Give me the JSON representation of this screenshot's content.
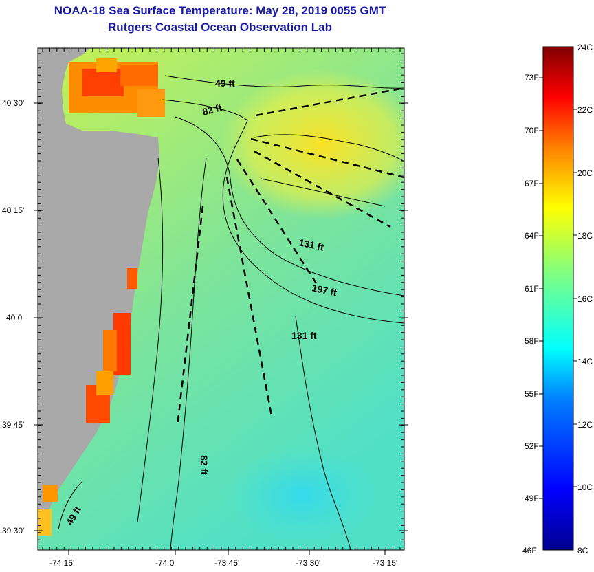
{
  "header": {
    "title": "NOAA-18 Sea Surface Temperature:  May 28, 2019 0055 GMT",
    "subtitle": "Rutgers Coastal Ocean Observation Lab"
  },
  "map": {
    "lat_labels": [
      "40 30'",
      "40 15'",
      "40 0'",
      "39 45'",
      "39 30'"
    ],
    "lon_labels": [
      "-74 15'",
      "-74 0'",
      "-73 45'",
      "-73 30'",
      "-73 15'"
    ],
    "lat_range": [
      39.45,
      40.66
    ],
    "lon_range": [
      -74.375,
      -73.22
    ],
    "isobath_labels": [
      "49 ft",
      "82 ft",
      "131 ft",
      "197 ft",
      "131 ft",
      "82 ft",
      "49 ft"
    ]
  },
  "colorbar": {
    "fahrenheit": [
      "73F",
      "70F",
      "67F",
      "64F",
      "61F",
      "58F",
      "55F",
      "52F",
      "49F",
      "46F"
    ],
    "celsius": [
      "24C",
      "22C",
      "20C",
      "18C",
      "16C",
      "14C",
      "12C",
      "10C",
      "8C"
    ],
    "range_c": [
      8,
      24
    ],
    "colors": [
      "#00008f",
      "#0000ff",
      "#0080ff",
      "#00ffff",
      "#80ff80",
      "#ffff00",
      "#ff8000",
      "#ff0000",
      "#800000"
    ]
  },
  "colors": {
    "land": "#a9a9a9",
    "title": "#1a1aa6"
  }
}
